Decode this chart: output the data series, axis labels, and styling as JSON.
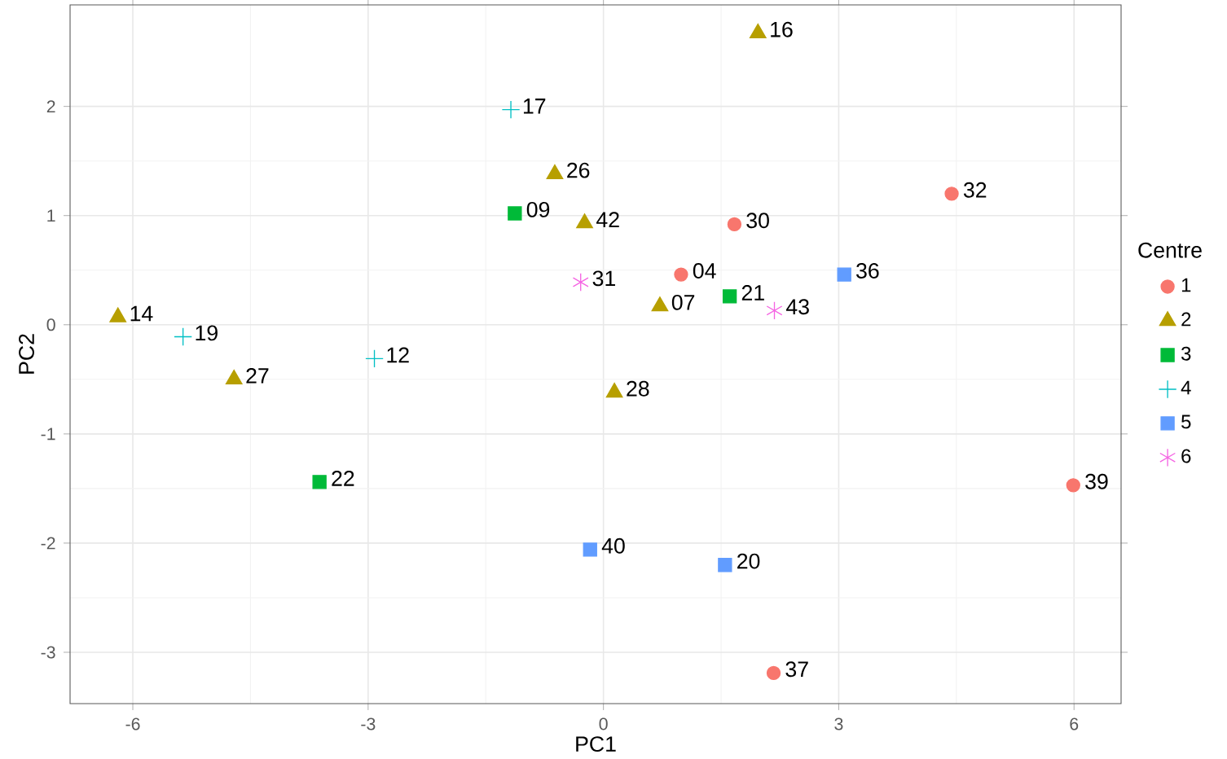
{
  "chart_data": {
    "type": "scatter",
    "xlabel": "PC1",
    "ylabel": "PC2",
    "legend_title": "Centre",
    "xlim": [
      -6.8,
      6.6
    ],
    "ylim": [
      -3.47,
      2.93
    ],
    "xticks": [
      -6,
      -3,
      0,
      3,
      6
    ],
    "yticks": [
      -3,
      -2,
      -1,
      0,
      1,
      2
    ],
    "grid": true,
    "legend": "right",
    "series": [
      {
        "name": "1",
        "color": "#f8766d",
        "marker": "circle",
        "x": [
          0.99,
          1.67,
          4.44,
          5.99,
          2.17
        ],
        "values": [
          0.46,
          0.92,
          1.2,
          -1.47,
          -3.19
        ]
      },
      {
        "name": "2",
        "color": "#b79f00",
        "marker": "triangle",
        "x": [
          1.97,
          -0.62,
          -0.24,
          -6.19,
          -4.71,
          0.72,
          0.14
        ],
        "values": [
          2.67,
          1.38,
          0.93,
          0.07,
          -0.5,
          0.17,
          -0.62
        ]
      },
      {
        "name": "3",
        "color": "#00ba38",
        "marker": "square",
        "x": [
          -1.13,
          1.61,
          -3.62
        ],
        "values": [
          1.02,
          0.26,
          -1.44
        ]
      },
      {
        "name": "4",
        "color": "#00bfc4",
        "marker": "cross",
        "x": [
          -1.18,
          -5.36,
          -2.92
        ],
        "values": [
          1.97,
          -0.11,
          -0.31
        ]
      },
      {
        "name": "5",
        "color": "#619cff",
        "marker": "square",
        "x": [
          3.07,
          -0.17,
          1.55
        ],
        "values": [
          0.46,
          -2.06,
          -2.2
        ]
      },
      {
        "name": "6",
        "color": "#f564e3",
        "marker": "cross",
        "x": [
          -0.29,
          2.18
        ],
        "values": [
          0.39,
          0.13
        ]
      }
    ],
    "annotations": [
      {
        "text": "04",
        "x": 0.99,
        "y": 0.46
      },
      {
        "text": "30",
        "x": 1.67,
        "y": 0.92
      },
      {
        "text": "32",
        "x": 4.44,
        "y": 1.2
      },
      {
        "text": "39",
        "x": 5.99,
        "y": -1.47
      },
      {
        "text": "37",
        "x": 2.17,
        "y": -3.19
      },
      {
        "text": "16",
        "x": 1.97,
        "y": 2.67
      },
      {
        "text": "26",
        "x": -0.62,
        "y": 1.38
      },
      {
        "text": "42",
        "x": -0.24,
        "y": 0.93
      },
      {
        "text": "14",
        "x": -6.19,
        "y": 0.07
      },
      {
        "text": "27",
        "x": -4.71,
        "y": -0.5
      },
      {
        "text": "07",
        "x": 0.72,
        "y": 0.17
      },
      {
        "text": "28",
        "x": 0.14,
        "y": -0.62
      },
      {
        "text": "09",
        "x": -1.13,
        "y": 1.02
      },
      {
        "text": "21",
        "x": 1.61,
        "y": 0.26
      },
      {
        "text": "22",
        "x": -3.62,
        "y": -1.44
      },
      {
        "text": "17",
        "x": -1.18,
        "y": 1.97
      },
      {
        "text": "19",
        "x": -5.36,
        "y": -0.11
      },
      {
        "text": "12",
        "x": -2.92,
        "y": -0.31
      },
      {
        "text": "36",
        "x": 3.07,
        "y": 0.46
      },
      {
        "text": "40",
        "x": -0.17,
        "y": -2.06
      },
      {
        "text": "20",
        "x": 1.55,
        "y": -2.2
      },
      {
        "text": "31",
        "x": -0.29,
        "y": 0.39
      },
      {
        "text": "43",
        "x": 2.18,
        "y": 0.13
      }
    ]
  }
}
